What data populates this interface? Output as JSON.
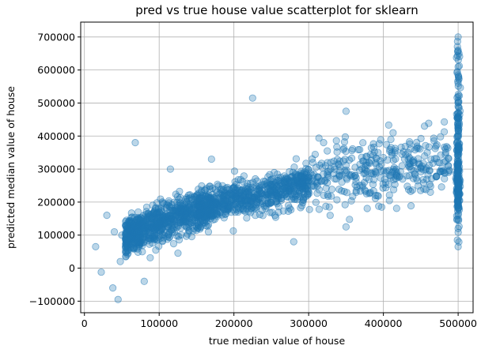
{
  "chart_data": {
    "type": "scatter",
    "title": "pred vs true house value scatterplot for sklearn",
    "xlabel": "true median value of house",
    "ylabel": "predicted median value of house",
    "xlim": [
      -5000,
      520000
    ],
    "ylim": [
      -135000,
      745000
    ],
    "xticks": [
      0,
      100000,
      200000,
      300000,
      400000,
      500000
    ],
    "xtick_labels": [
      "0",
      "100000",
      "200000",
      "300000",
      "400000",
      "500000"
    ],
    "yticks": [
      -100000,
      0,
      100000,
      200000,
      300000,
      400000,
      500000,
      600000,
      700000
    ],
    "ytick_labels": [
      "−100000",
      "0",
      "100000",
      "200000",
      "300000",
      "400000",
      "500000",
      "600000",
      "700000"
    ],
    "grid": true,
    "marker_color": "#1f77b4",
    "marker_alpha": 0.3,
    "series": [
      {
        "x": [
          15000,
          22500,
          30000,
          38000,
          40000,
          45000,
          48000,
          50000,
          55000,
          62000,
          66000,
          70000,
          72000,
          75000,
          80000,
          85000,
          90000,
          95000,
          100000,
          105000,
          112000,
          120000,
          130000,
          140000,
          150000,
          160000,
          175000,
          187000,
          200000,
          212000,
          225000,
          237000,
          250000,
          262000,
          275000,
          287000,
          300000,
          312000,
          325000,
          337000,
          350000,
          362000,
          375000,
          387000,
          400000,
          412000,
          425000,
          437000,
          450000,
          462000,
          475000,
          487000,
          68000,
          225000,
          350000,
          350000,
          80000,
          115000,
          170000,
          280000,
          320000,
          410000,
          455000,
          500001,
          500001,
          500001,
          500001,
          500001,
          500001,
          500001,
          500001,
          500001,
          500001,
          500001,
          500001,
          500001,
          500001,
          500001,
          500001,
          500001,
          500001,
          500001,
          500001,
          500001,
          500001
        ],
        "y": [
          65000,
          -12000,
          160000,
          -60000,
          110000,
          -95000,
          20000,
          100000,
          130000,
          90000,
          60000,
          120000,
          170000,
          95000,
          140000,
          110000,
          150000,
          180000,
          130000,
          160000,
          140000,
          175000,
          165000,
          185000,
          200000,
          190000,
          210000,
          205000,
          230000,
          215000,
          245000,
          225000,
          250000,
          240000,
          265000,
          255000,
          275000,
          260000,
          285000,
          270000,
          290000,
          280000,
          300000,
          285000,
          295000,
          290000,
          310000,
          300000,
          305000,
          295000,
          320000,
          310000,
          380000,
          515000,
          475000,
          125000,
          -40000,
          300000,
          330000,
          80000,
          380000,
          390000,
          430000,
          700000,
          660000,
          610000,
          560000,
          520000,
          490000,
          460000,
          430000,
          400000,
          370000,
          340000,
          310000,
          280000,
          260000,
          240000,
          220000,
          200000,
          180000,
          160000,
          120000,
          65000,
          585000
        ]
      }
    ]
  }
}
